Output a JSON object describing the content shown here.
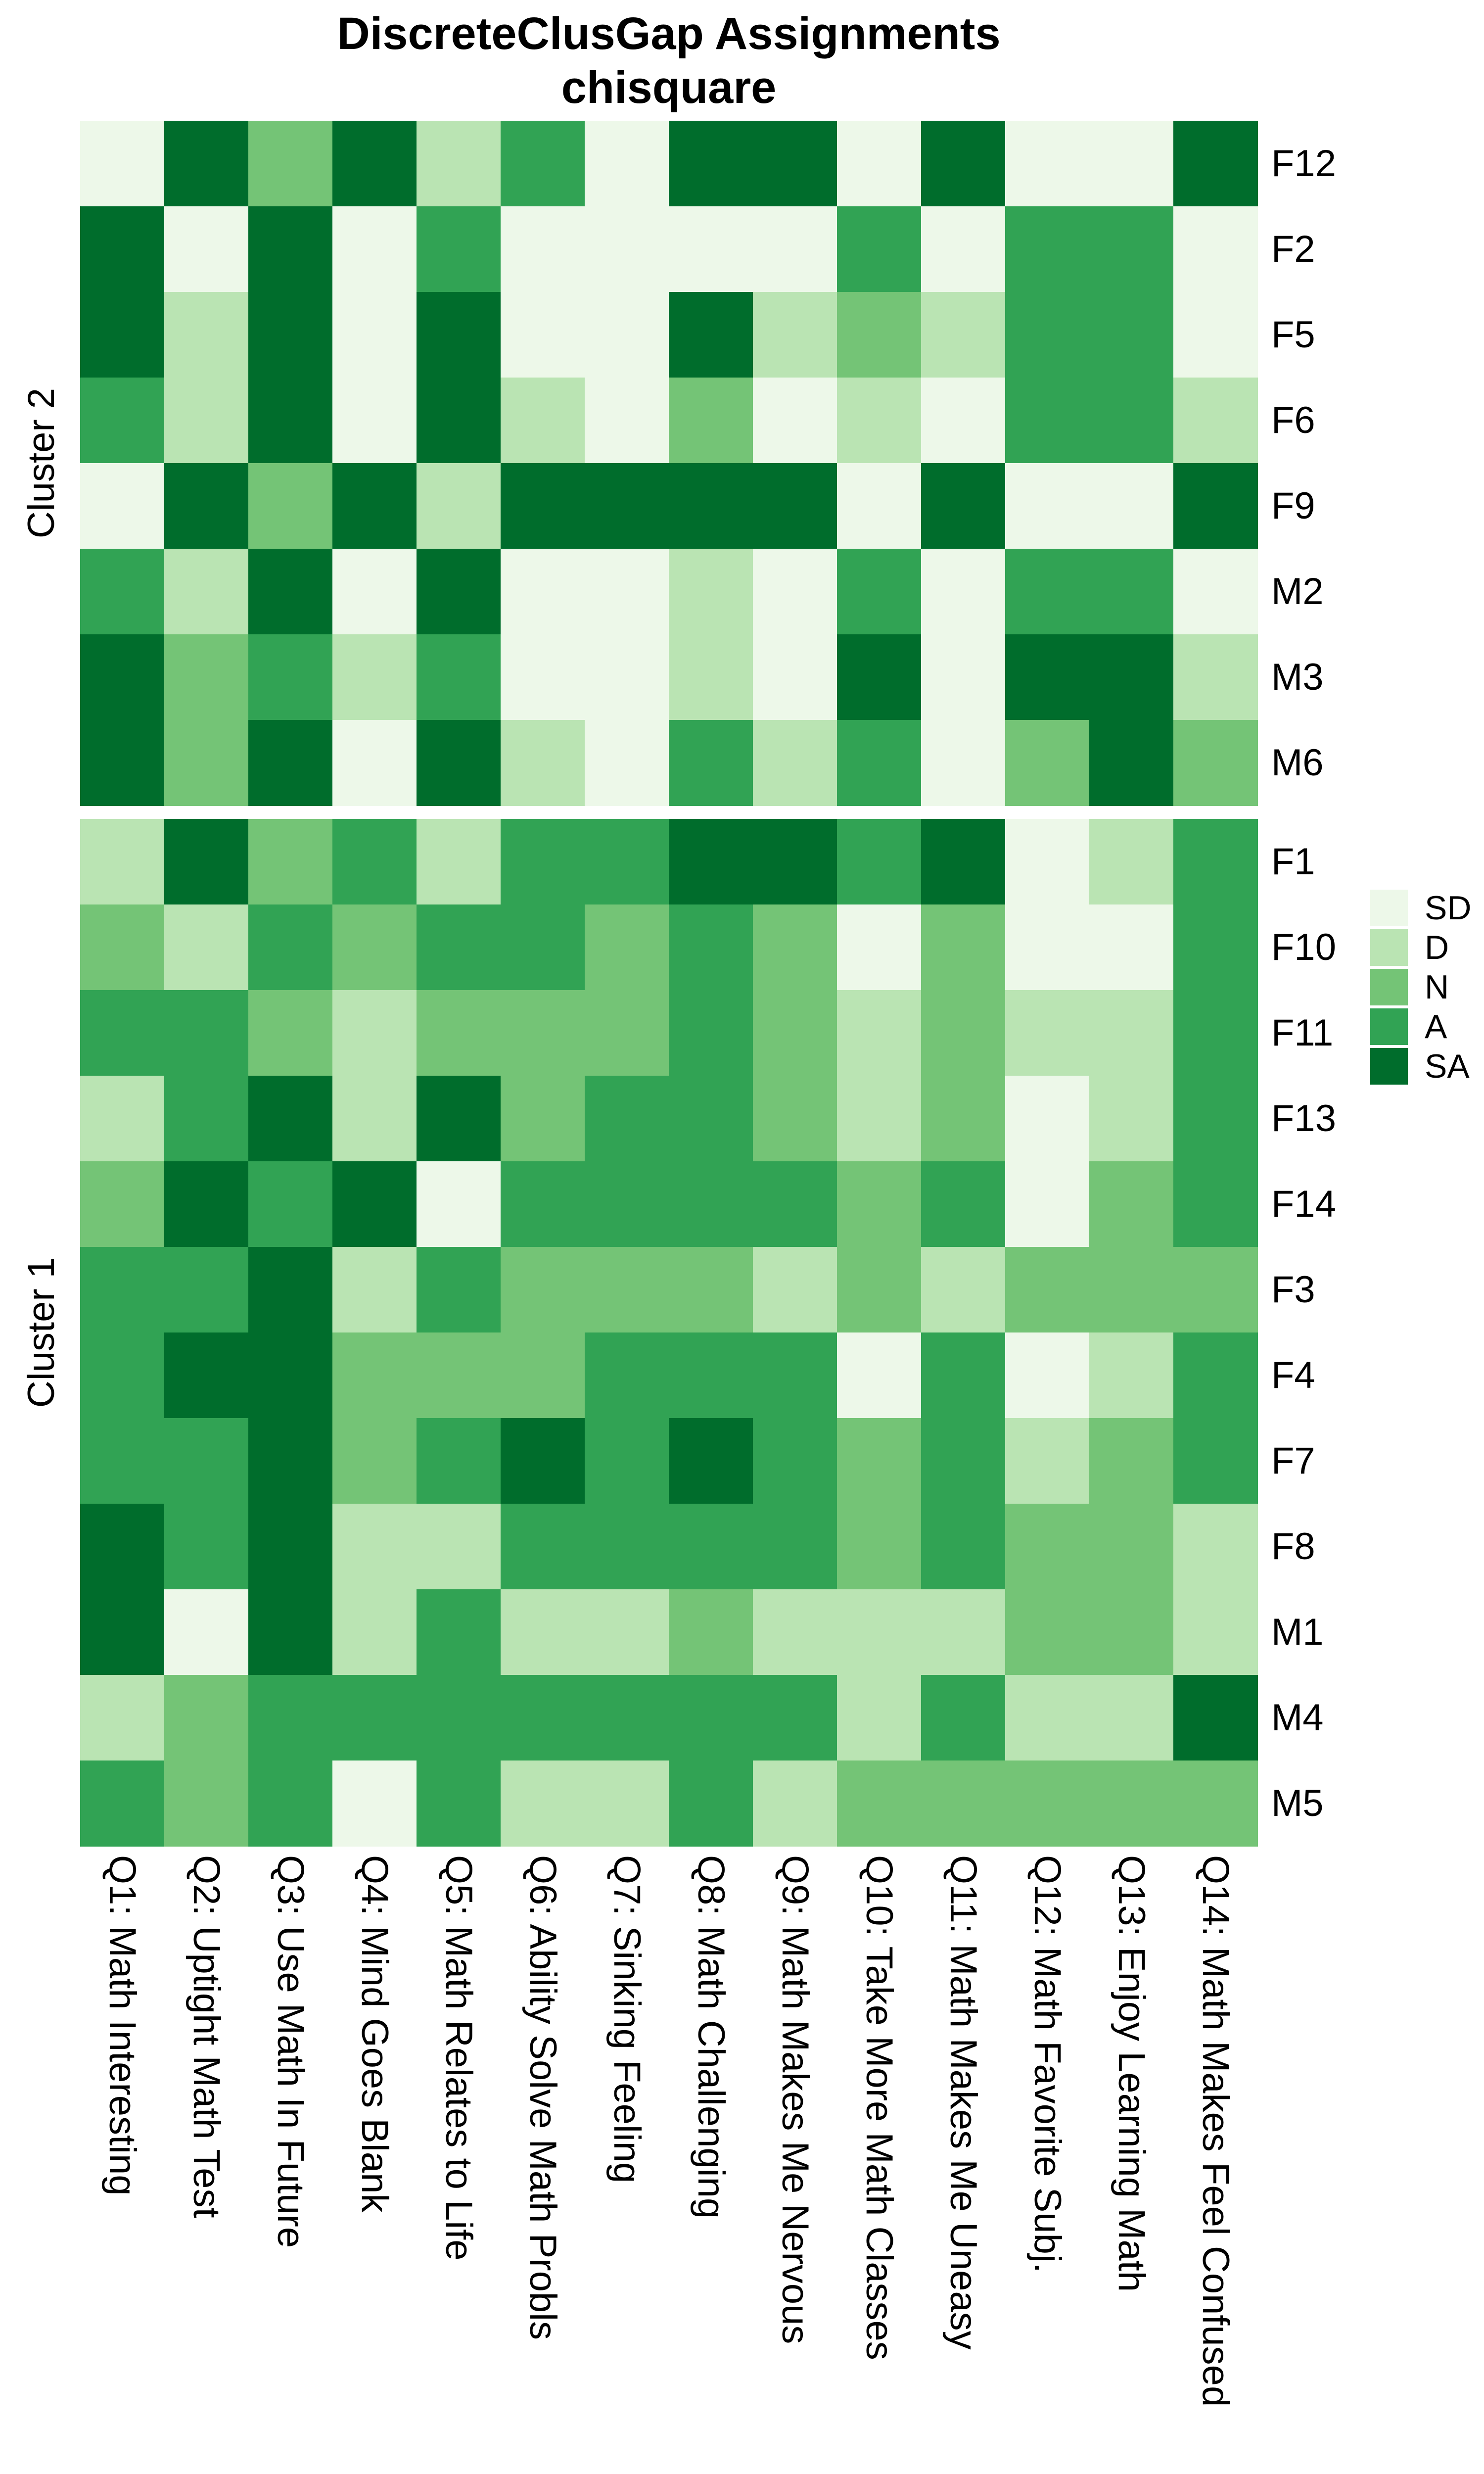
{
  "title": {
    "line1": "DiscreteClusGap Assignments",
    "line2": "chisquare"
  },
  "legend": {
    "entries": [
      {
        "label": "SD",
        "color": "#edf8e9"
      },
      {
        "label": "D",
        "color": "#bae4b3"
      },
      {
        "label": "N",
        "color": "#74c476"
      },
      {
        "label": "A",
        "color": "#31a354"
      },
      {
        "label": "SA",
        "color": "#006d2c"
      }
    ]
  },
  "chart_data": {
    "type": "heatmap",
    "title": "DiscreteClusGap Assignments chisquare",
    "value_levels": [
      "SD",
      "D",
      "N",
      "A",
      "SA"
    ],
    "level_colors": {
      "SD": "#edf8e9",
      "D": "#bae4b3",
      "N": "#74c476",
      "A": "#31a354",
      "SA": "#006d2c"
    },
    "legend_position": "right",
    "columns": [
      "Q1: Math Interesting",
      "Q2: Uptight Math Test",
      "Q3: Use Math In Future",
      "Q4: Mind Goes Blank",
      "Q5: Math Relates to Life",
      "Q6: Ability Solve Math Probls",
      "Q7: Sinking Feeling",
      "Q8: Math Challenging",
      "Q9: Math Makes Me Nervous",
      "Q10: Take More Math Classes",
      "Q11: Math Makes Me Uneasy",
      "Q12: Math Favorite Subj.",
      "Q13: Enjoy Learning Math",
      "Q14: Math Makes Feel Confused"
    ],
    "clusters": [
      {
        "label": "Cluster 2",
        "rows": [
          {
            "label": "F12",
            "values": [
              "SD",
              "SA",
              "N",
              "SA",
              "D",
              "A",
              "SD",
              "SA",
              "SA",
              "SD",
              "SA",
              "SD",
              "SD",
              "SA"
            ]
          },
          {
            "label": "F2",
            "values": [
              "SA",
              "SD",
              "SA",
              "SD",
              "A",
              "SD",
              "SD",
              "SD",
              "SD",
              "A",
              "SD",
              "A",
              "A",
              "SD"
            ]
          },
          {
            "label": "F5",
            "values": [
              "SA",
              "D",
              "SA",
              "SD",
              "SA",
              "SD",
              "SD",
              "SA",
              "D",
              "N",
              "D",
              "A",
              "A",
              "SD"
            ]
          },
          {
            "label": "F6",
            "values": [
              "A",
              "D",
              "SA",
              "SD",
              "SA",
              "D",
              "SD",
              "N",
              "SD",
              "D",
              "SD",
              "A",
              "A",
              "D"
            ]
          },
          {
            "label": "F9",
            "values": [
              "SD",
              "SA",
              "N",
              "SA",
              "D",
              "SA",
              "SA",
              "SA",
              "SA",
              "SD",
              "SA",
              "SD",
              "SD",
              "SA"
            ]
          },
          {
            "label": "M2",
            "values": [
              "A",
              "D",
              "SA",
              "SD",
              "SA",
              "SD",
              "SD",
              "D",
              "SD",
              "A",
              "SD",
              "A",
              "A",
              "SD"
            ]
          },
          {
            "label": "M3",
            "values": [
              "SA",
              "N",
              "A",
              "D",
              "A",
              "SD",
              "SD",
              "D",
              "SD",
              "SA",
              "SD",
              "SA",
              "SA",
              "D"
            ]
          },
          {
            "label": "M6",
            "values": [
              "SA",
              "N",
              "SA",
              "SD",
              "SA",
              "D",
              "SD",
              "A",
              "D",
              "A",
              "SD",
              "N",
              "SA",
              "N"
            ]
          }
        ]
      },
      {
        "label": "Cluster 1",
        "rows": [
          {
            "label": "F1",
            "values": [
              "D",
              "SA",
              "N",
              "A",
              "D",
              "A",
              "A",
              "SA",
              "SA",
              "A",
              "SA",
              "SD",
              "D",
              "A"
            ]
          },
          {
            "label": "F10",
            "values": [
              "N",
              "D",
              "A",
              "N",
              "A",
              "A",
              "N",
              "A",
              "N",
              "SD",
              "N",
              "SD",
              "SD",
              "A"
            ]
          },
          {
            "label": "F11",
            "values": [
              "A",
              "A",
              "N",
              "D",
              "N",
              "N",
              "N",
              "A",
              "N",
              "D",
              "N",
              "D",
              "D",
              "A"
            ]
          },
          {
            "label": "F13",
            "values": [
              "D",
              "A",
              "SA",
              "D",
              "SA",
              "N",
              "A",
              "A",
              "N",
              "D",
              "N",
              "SD",
              "D",
              "A"
            ]
          },
          {
            "label": "F14",
            "values": [
              "N",
              "SA",
              "A",
              "SA",
              "SD",
              "A",
              "A",
              "A",
              "A",
              "N",
              "A",
              "SD",
              "N",
              "A"
            ]
          },
          {
            "label": "F3",
            "values": [
              "A",
              "A",
              "SA",
              "D",
              "A",
              "N",
              "N",
              "N",
              "D",
              "N",
              "D",
              "N",
              "N",
              "N"
            ]
          },
          {
            "label": "F4",
            "values": [
              "A",
              "SA",
              "SA",
              "N",
              "N",
              "N",
              "A",
              "A",
              "A",
              "SD",
              "A",
              "SD",
              "D",
              "A"
            ]
          },
          {
            "label": "F7",
            "values": [
              "A",
              "A",
              "SA",
              "N",
              "A",
              "SA",
              "A",
              "SA",
              "A",
              "N",
              "A",
              "D",
              "N",
              "A"
            ]
          },
          {
            "label": "F8",
            "values": [
              "SA",
              "A",
              "SA",
              "D",
              "D",
              "A",
              "A",
              "A",
              "A",
              "N",
              "A",
              "N",
              "N",
              "D"
            ]
          },
          {
            "label": "M1",
            "values": [
              "SA",
              "SD",
              "SA",
              "D",
              "A",
              "D",
              "D",
              "N",
              "D",
              "D",
              "D",
              "N",
              "N",
              "D"
            ]
          },
          {
            "label": "M4",
            "values": [
              "D",
              "N",
              "A",
              "A",
              "A",
              "A",
              "A",
              "A",
              "A",
              "D",
              "A",
              "D",
              "D",
              "SA"
            ]
          },
          {
            "label": "M5",
            "values": [
              "A",
              "N",
              "A",
              "SD",
              "A",
              "D",
              "D",
              "A",
              "D",
              "N",
              "N",
              "N",
              "N",
              "N"
            ]
          }
        ]
      }
    ]
  }
}
